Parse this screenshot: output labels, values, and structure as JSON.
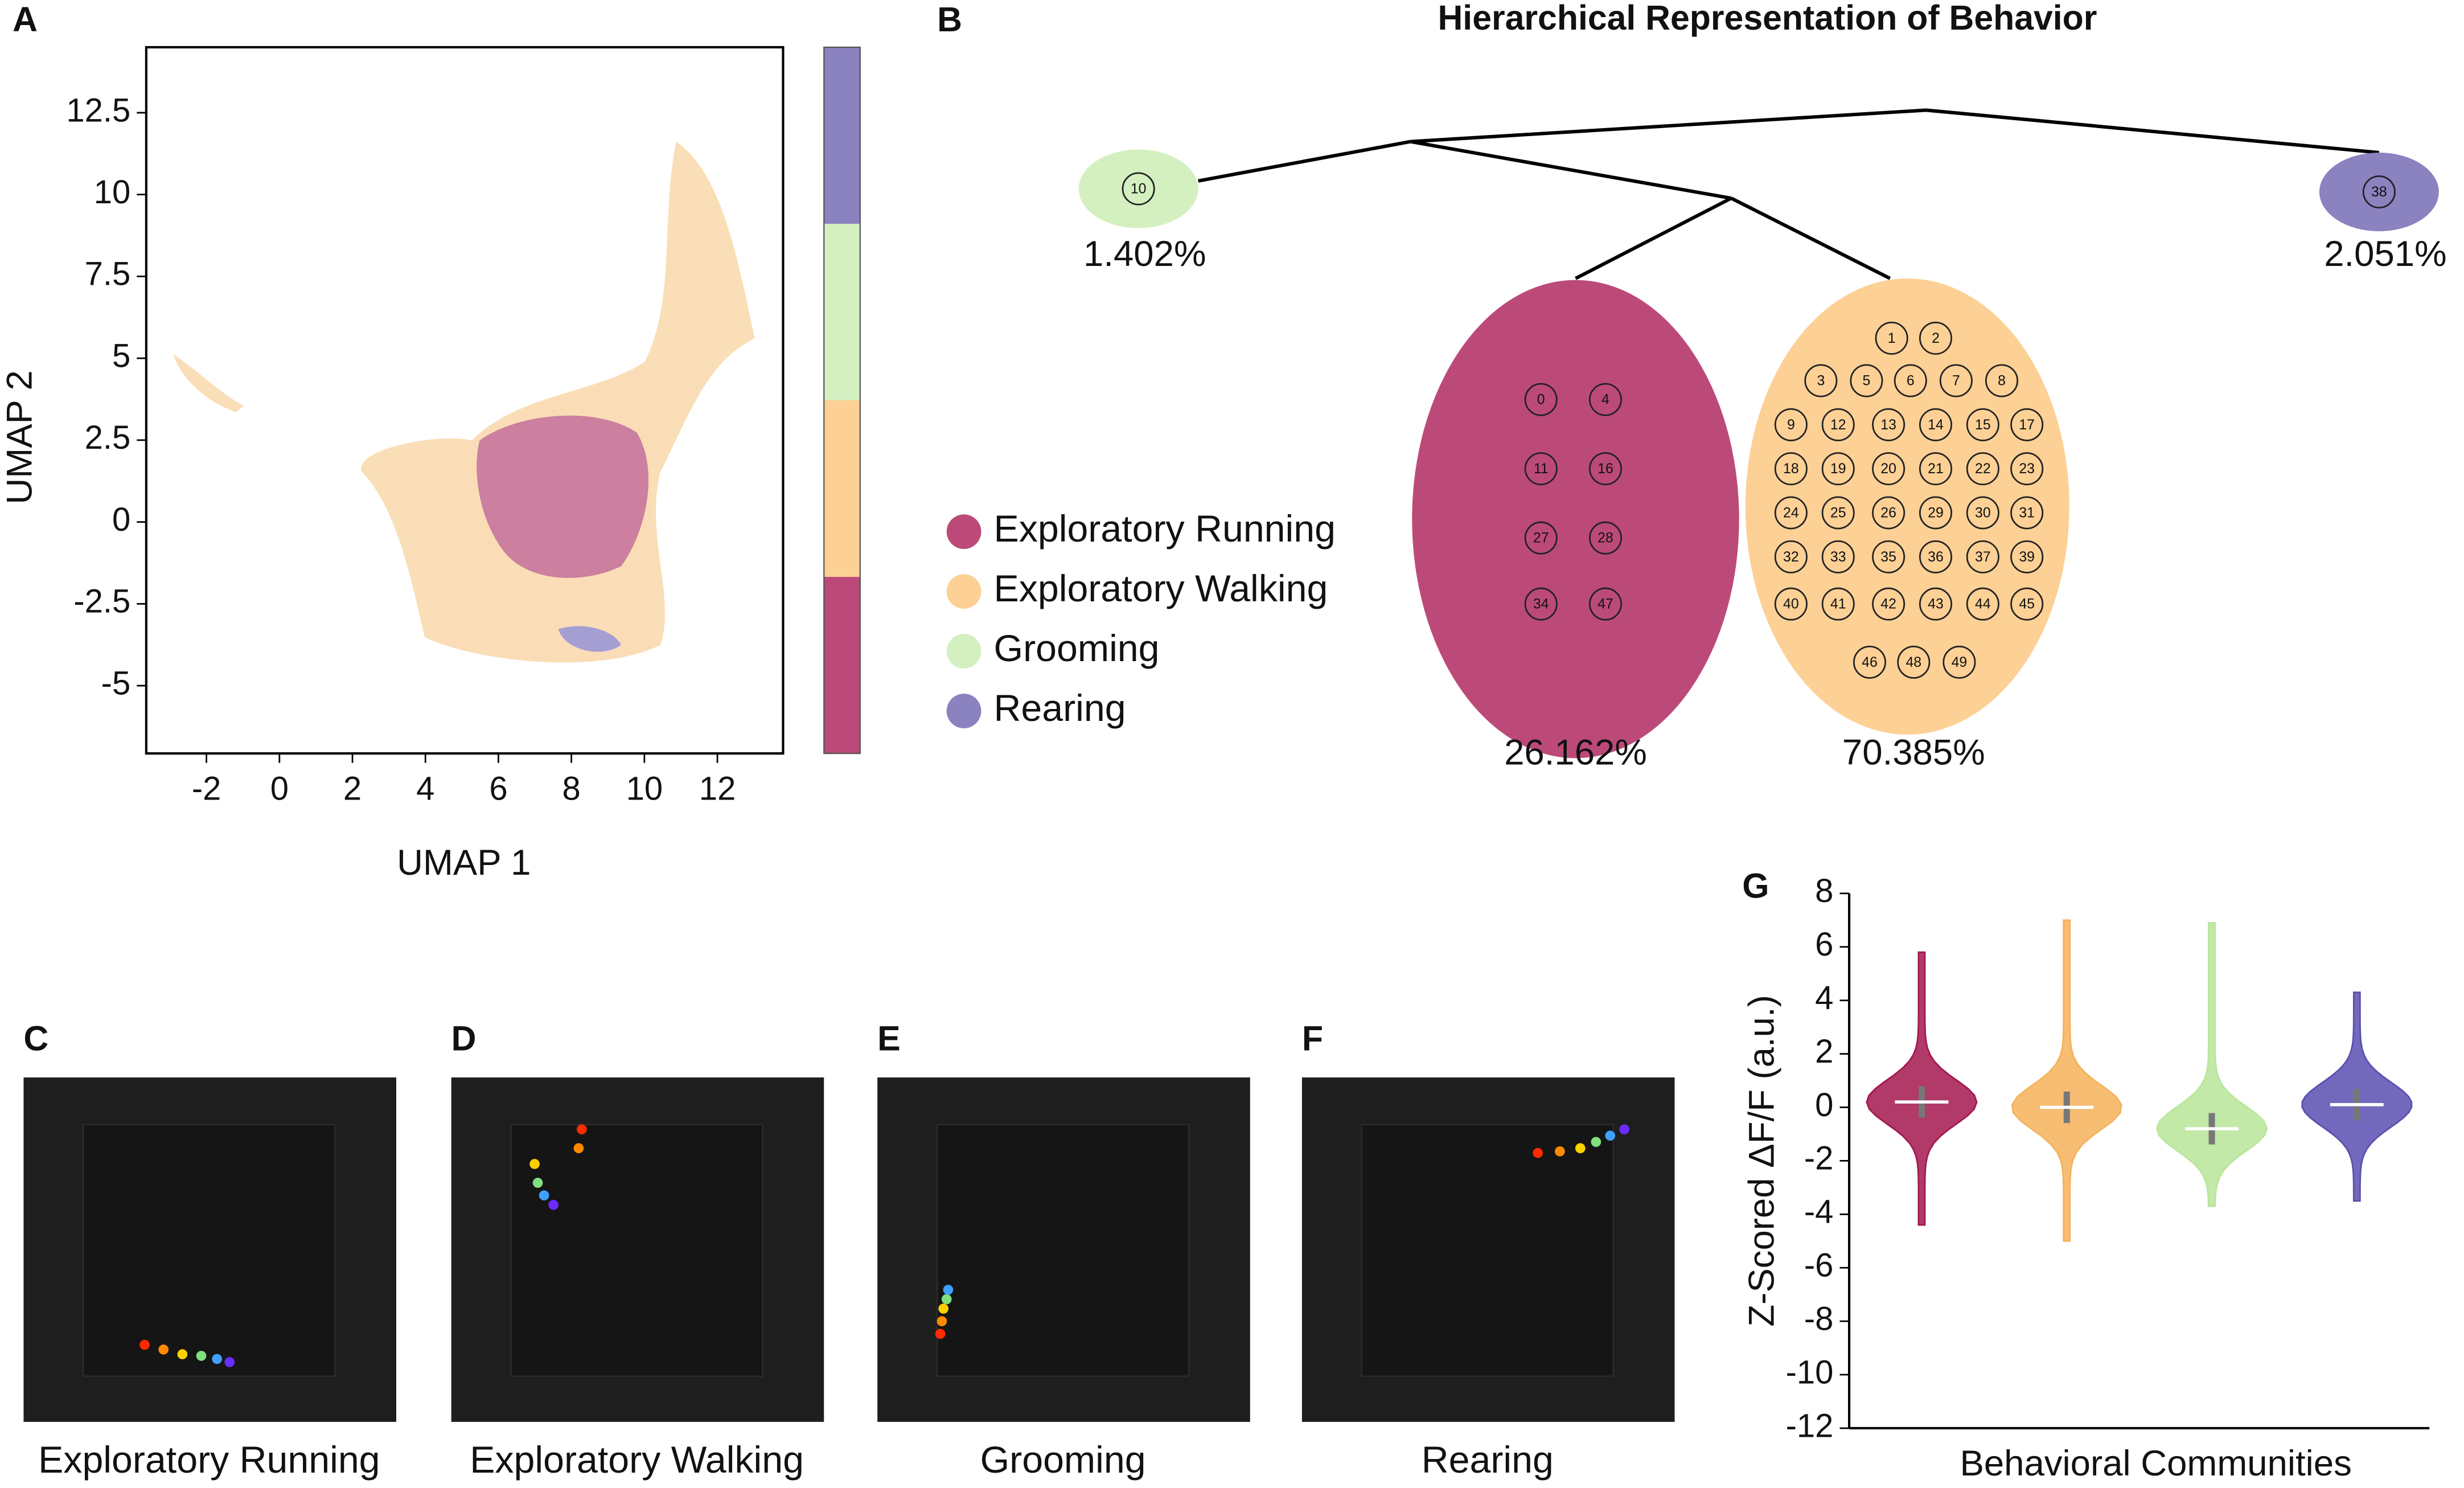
{
  "panel_labels": [
    "A",
    "B",
    "C",
    "D",
    "E",
    "F",
    "G"
  ],
  "chart_data": [
    {
      "type": "scatter",
      "xlabel": "UMAP 1",
      "ylabel": "UMAP 2",
      "xlim": [
        -3.65,
        13.8
      ],
      "ylim": [
        -7.07,
        14.5
      ],
      "xticks": [
        -2,
        0,
        2,
        4,
        6,
        8,
        10,
        12
      ],
      "yticks": [
        -5,
        -2.5,
        0,
        2.5,
        5,
        7.5,
        10,
        12.5
      ],
      "colorbar": [
        "#bc4a78",
        "#fdd095",
        "#d4f0c0",
        "#8b82c0"
      ]
    },
    {
      "type": "violin",
      "ylabel": "Z-Scored ΔF/F (a.u.)",
      "xlabel": "Behavioral Communities",
      "ylim": [
        -12,
        8
      ],
      "yticks": [
        -12,
        -10,
        -8,
        -6,
        -4,
        -2,
        0,
        2,
        4,
        6,
        8
      ],
      "series": [
        {
          "color": "#a3174f",
          "median": 0.2,
          "min": -4.4,
          "max": 5.8
        },
        {
          "color": "#f5b25a",
          "median": 0,
          "min": -5,
          "max": 7
        },
        {
          "color": "#b9e59a",
          "median": -0.8,
          "min": -3.7,
          "max": 6.9
        },
        {
          "color": "#5b4fb0",
          "median": 0.1,
          "min": -3.5,
          "max": 4.3
        }
      ]
    }
  ],
  "tree": {
    "title": "Hierarchical Representation of Behavior",
    "clusters": [
      {
        "share": "1.402%",
        "color": "#d4f0c0",
        "members": [
          10
        ]
      },
      {
        "share": "2.051%",
        "color": "#8b82c0",
        "members": [
          38
        ]
      },
      {
        "share": "26.162%",
        "color": "#bc4a78",
        "members": [
          0,
          4,
          11,
          16,
          27,
          28,
          34,
          47
        ]
      },
      {
        "share": "70.385%",
        "color": "#fdd095",
        "members": [
          1,
          2,
          3,
          5,
          6,
          7,
          8,
          9,
          12,
          13,
          14,
          15,
          17,
          18,
          19,
          20,
          21,
          22,
          23,
          24,
          25,
          26,
          29,
          30,
          31,
          32,
          33,
          35,
          36,
          37,
          39,
          40,
          41,
          42,
          43,
          44,
          45,
          46,
          48,
          49
        ]
      }
    ]
  },
  "legend": [
    {
      "name": "Exploratory Running",
      "color": "#bc4a78"
    },
    {
      "name": "Exploratory Walking",
      "color": "#fdd095"
    },
    {
      "name": "Grooming",
      "color": "#d4f0c0"
    },
    {
      "name": "Rearing",
      "color": "#8b82c0"
    }
  ],
  "snapshots": [
    "Exploratory Running",
    "Exploratory Walking",
    "Grooming",
    "Rearing"
  ]
}
